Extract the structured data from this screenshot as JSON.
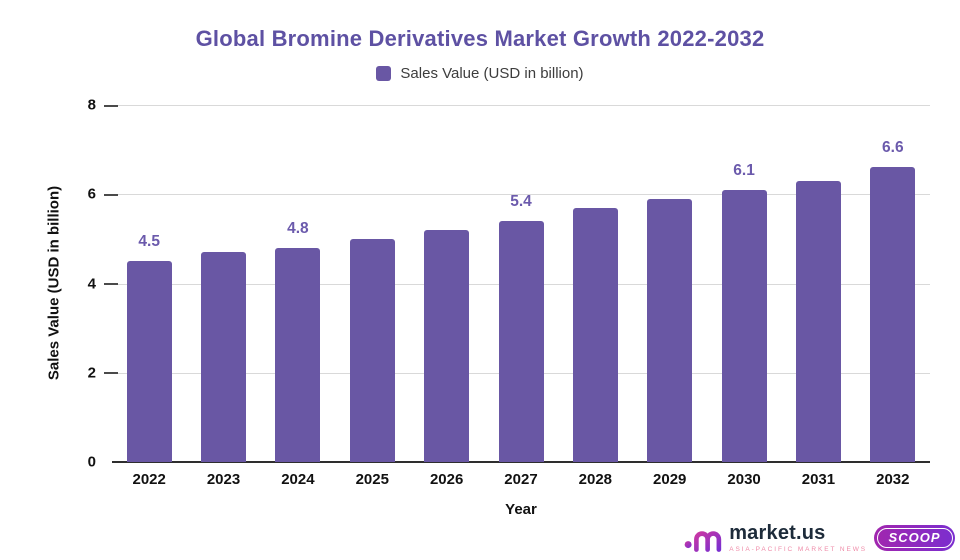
{
  "chart_data": {
    "type": "bar",
    "title": "Global Bromine Derivatives Market Growth 2022-2032",
    "legend": [
      {
        "label": "Sales Value (USD in billion)",
        "color": "#6957a4"
      }
    ],
    "legend_position": "top",
    "categories": [
      "2022",
      "2023",
      "2024",
      "2025",
      "2026",
      "2027",
      "2028",
      "2029",
      "2030",
      "2031",
      "2032"
    ],
    "series": [
      {
        "name": "Sales Value (USD in billion)",
        "values": [
          4.5,
          4.7,
          4.8,
          5.0,
          5.2,
          5.4,
          5.7,
          5.9,
          6.1,
          6.3,
          6.6
        ]
      }
    ],
    "data_labels": [
      "4.5",
      "",
      "4.8",
      "",
      "",
      "5.4",
      "",
      "",
      "6.1",
      "",
      "6.6"
    ],
    "xlabel": "Year",
    "ylabel": "Sales Value (USD in billion)",
    "ylim": [
      0,
      8
    ],
    "yticks": [
      0,
      2,
      4,
      6,
      8
    ],
    "grid": "horizontal",
    "colors": {
      "bar": "#6957a4",
      "title": "#5e51a3",
      "data_label": "#6b5aac",
      "gridline": "#d9d9d9",
      "axis_line": "#2e2e2e",
      "tick_text": "#111111",
      "legend_text": "#3d3d3d"
    }
  },
  "footer": {
    "brand": "market.us",
    "tagline": "ASIA-PACIFIC MARKET NEWS",
    "badge": "SCOOP",
    "colors": {
      "brand_text": "#1d2b3a",
      "tagline_text": "#ef8ba8",
      "badge_from": "#a126ae",
      "badge_to": "#7b2ecf",
      "logo_from": "#c937a4",
      "logo_to": "#7a2fd0"
    }
  }
}
